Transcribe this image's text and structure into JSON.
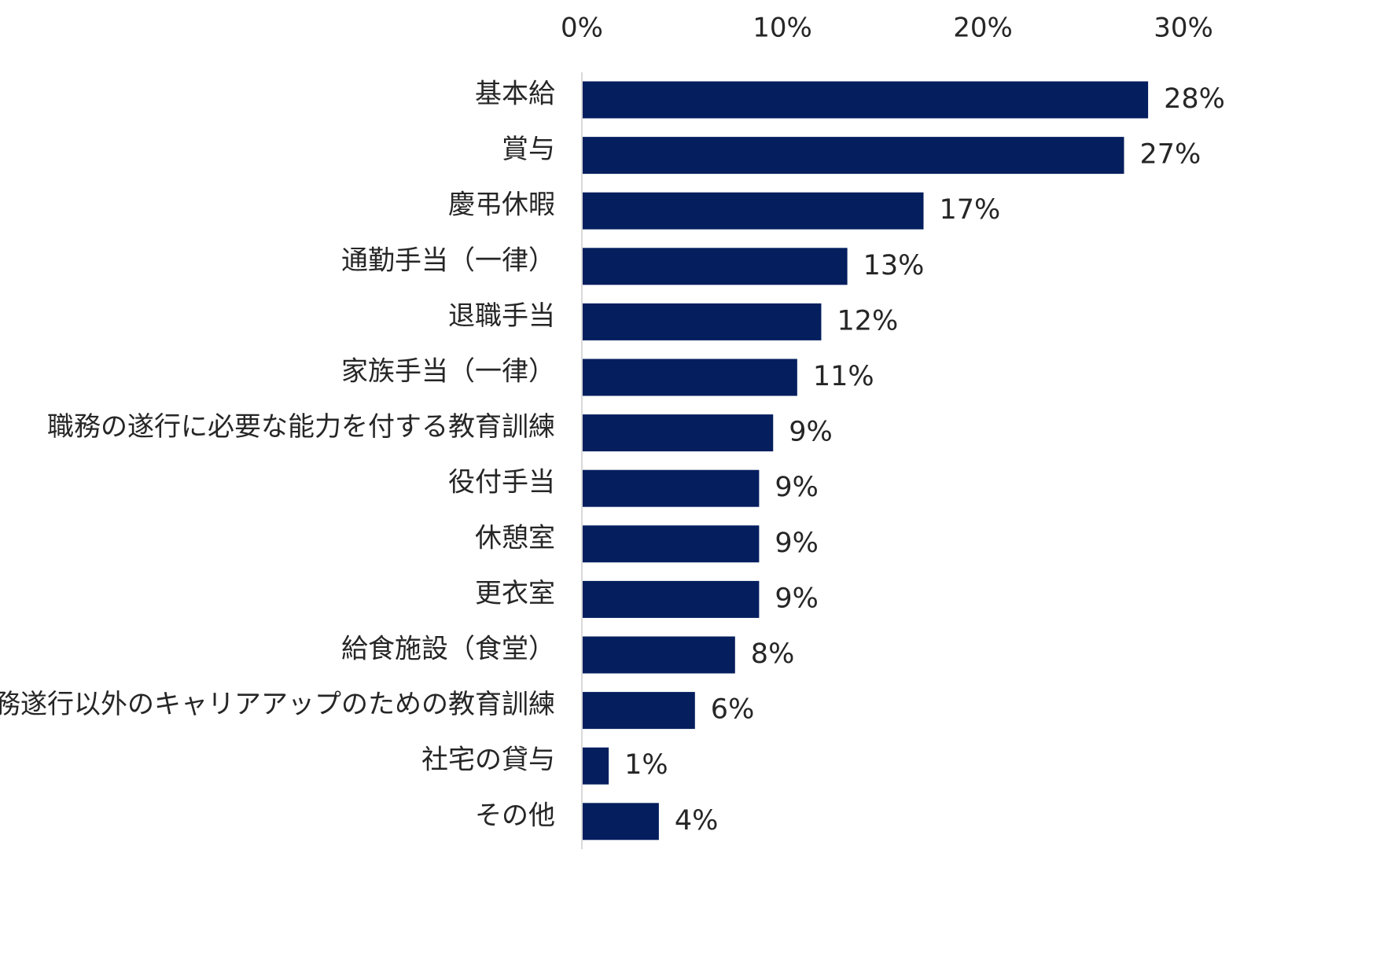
{
  "chart_data": {
    "type": "bar",
    "orientation": "horizontal",
    "title": "",
    "xlabel": "",
    "ylabel": "",
    "xlim": [
      0,
      30
    ],
    "x_ticks": [
      "0%",
      "10%",
      "20%",
      "30%"
    ],
    "x_tick_values": [
      0,
      10,
      20,
      30
    ],
    "x_axis_position": "top",
    "grid": false,
    "legend": "none",
    "bar_color": "#041E5E",
    "categories": [
      "基本給",
      "賞与",
      "慶弔休暇",
      "通勤手当（一律）",
      "退職手当",
      "家族手当（一律）",
      "職務の遂行に必要な能力を付する教育訓練",
      "役付手当",
      "休憩室",
      "更衣室",
      "給食施設（食堂）",
      "職務遂行以外のキャリアアップのための教育訓練",
      "社宅の貸与",
      "その他"
    ],
    "values": [
      28.2,
      27.0,
      17.0,
      13.2,
      11.9,
      10.7,
      9.5,
      8.8,
      8.8,
      8.8,
      7.6,
      5.6,
      1.3,
      3.8
    ],
    "value_labels": [
      "28%",
      "27%",
      "17%",
      "13%",
      "12%",
      "11%",
      "9%",
      "9%",
      "9%",
      "9%",
      "8%",
      "6%",
      "1%",
      "4%"
    ]
  }
}
